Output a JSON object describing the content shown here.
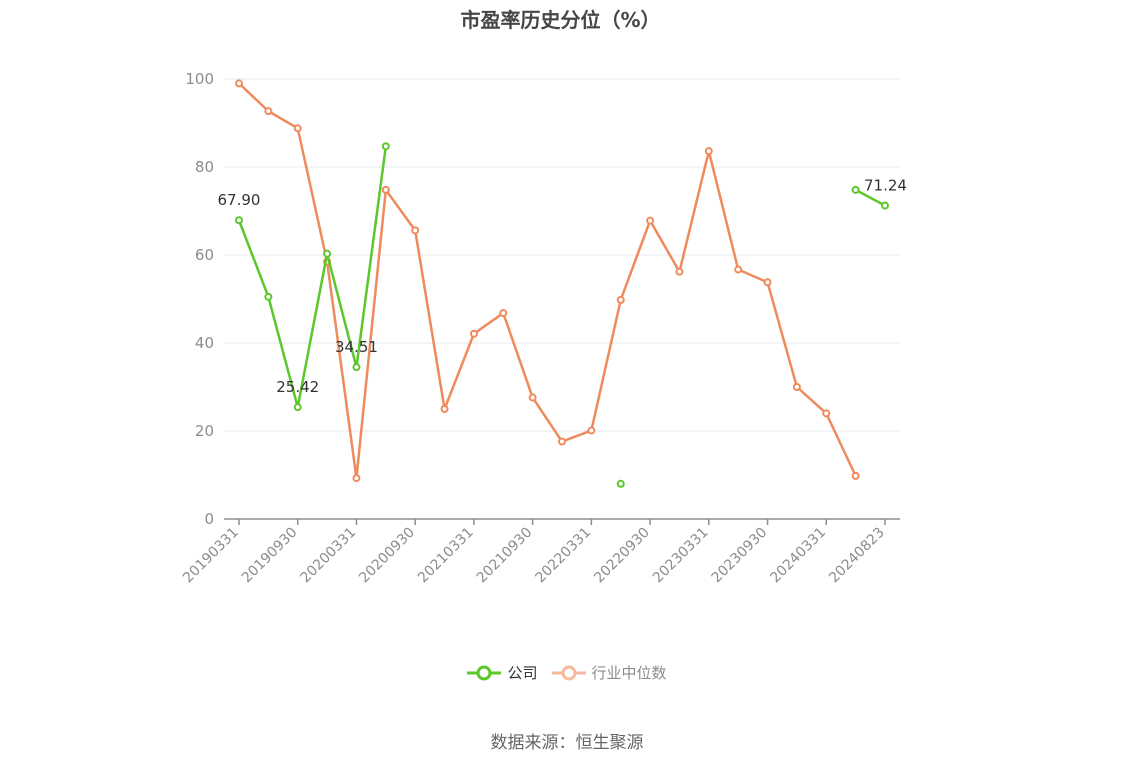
{
  "chart_data": {
    "type": "line",
    "title": "市盈率历史分位（%）",
    "xlabel": "",
    "ylabel": "",
    "ylim": [
      0,
      100
    ],
    "yticks": [
      0,
      20,
      40,
      60,
      80,
      100
    ],
    "grid": true,
    "legend_placement": "bottom",
    "x": [
      "20190331",
      "20190630",
      "20190930",
      "20191231",
      "20200331",
      "20200630",
      "20200930",
      "20201231",
      "20210331",
      "20210630",
      "20210930",
      "20211231",
      "20220331",
      "20220630",
      "20220930",
      "20221231",
      "20230331",
      "20230630",
      "20230930",
      "20231231",
      "20240331",
      "20240630",
      "20240823"
    ],
    "xtick_labels": [
      "20190331",
      "20190930",
      "20200331",
      "20200930",
      "20210331",
      "20210930",
      "20220331",
      "20220930",
      "20230331",
      "20230930",
      "20240331",
      "20240823"
    ],
    "series": [
      {
        "name": "公司",
        "color": "#5cc72a",
        "values": [
          67.9,
          50.5,
          25.42,
          60.3,
          34.51,
          84.7,
          null,
          null,
          null,
          null,
          null,
          null,
          null,
          8.0,
          null,
          null,
          null,
          null,
          null,
          null,
          null,
          74.8,
          71.24
        ],
        "labels": [
          {
            "index": 0,
            "text": "67.90"
          },
          {
            "index": 2,
            "text": "25.42"
          },
          {
            "index": 4,
            "text": "34.51"
          },
          {
            "index": 22,
            "text": "71.24"
          }
        ]
      },
      {
        "name": "行业中位数",
        "color": "#ef8a5c",
        "values": [
          99.0,
          92.7,
          88.8,
          58.5,
          9.3,
          74.8,
          65.6,
          25.0,
          42.1,
          46.8,
          27.6,
          17.6,
          20.1,
          49.8,
          67.8,
          56.2,
          83.6,
          56.7,
          53.8,
          30.0,
          24.0,
          9.8,
          null
        ]
      }
    ]
  },
  "legend": {
    "company_label": "公司",
    "industry_label": "行业中位数",
    "company_color": "#5cc72a",
    "industry_color": "#f5b99e"
  },
  "source": "数据来源：恒生聚源"
}
